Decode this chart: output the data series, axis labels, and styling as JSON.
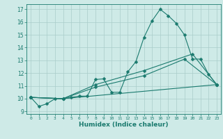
{
  "title": "",
  "xlabel": "Humidex (Indice chaleur)",
  "bg_color": "#ceeae7",
  "grid_color": "#aaccca",
  "line_color": "#1a7a6e",
  "xlim": [
    -0.5,
    23.5
  ],
  "ylim": [
    8.8,
    17.4
  ],
  "xticks": [
    0,
    1,
    2,
    3,
    4,
    5,
    6,
    7,
    8,
    9,
    10,
    11,
    12,
    13,
    14,
    15,
    16,
    17,
    18,
    19,
    20,
    21,
    22,
    23
  ],
  "yticks": [
    9,
    10,
    11,
    12,
    13,
    14,
    15,
    16,
    17
  ],
  "line1_x": [
    0,
    1,
    2,
    3,
    4,
    5,
    6,
    7,
    8,
    9,
    10,
    11,
    12,
    13,
    14,
    15,
    16,
    17,
    18,
    19,
    20,
    21,
    22,
    23
  ],
  "line1_y": [
    10.1,
    9.4,
    9.6,
    10.0,
    10.0,
    10.1,
    10.2,
    10.2,
    11.5,
    11.55,
    10.5,
    10.5,
    12.1,
    12.9,
    14.8,
    16.1,
    17.0,
    16.5,
    15.9,
    15.0,
    13.1,
    13.1,
    11.9,
    11.1
  ],
  "line2_x": [
    0,
    4,
    8,
    14,
    20,
    23
  ],
  "line2_y": [
    10.1,
    10.0,
    11.1,
    12.2,
    13.5,
    11.1
  ],
  "line3_x": [
    0,
    4,
    8,
    14,
    19,
    23
  ],
  "line3_y": [
    10.1,
    10.0,
    10.9,
    11.8,
    13.1,
    11.1
  ],
  "line4_x": [
    0,
    4,
    23
  ],
  "line4_y": [
    10.1,
    10.0,
    11.1
  ],
  "markersize": 2.5,
  "linewidth": 0.8
}
